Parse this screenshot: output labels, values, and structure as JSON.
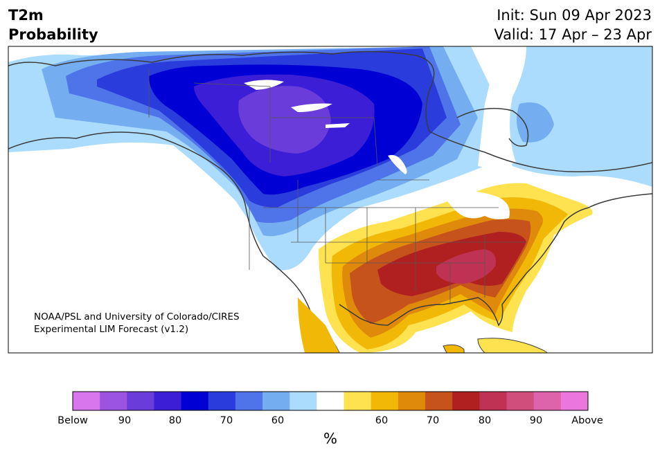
{
  "title": {
    "line1": "T2m",
    "line2": "Probability"
  },
  "info": {
    "init": "Init: Sun 09 Apr 2023",
    "valid": "Valid: 17 Apr – 23 Apr"
  },
  "credit": {
    "line1": "NOAA/PSL and University of Colorado/CIRES",
    "line2": "Experimental LIM Forecast (v1.2)"
  },
  "colorbar": {
    "colors": [
      "#d876ee",
      "#9a54df",
      "#6a3cd9",
      "#3b1ed6",
      "#0000d4",
      "#2a3ddc",
      "#4f74ea",
      "#75adf1",
      "#acdcfd",
      "#ffffff",
      "#ffe24f",
      "#f2b808",
      "#df8a0b",
      "#c6531b",
      "#b02020",
      "#c03253",
      "#cf4e7c",
      "#dd63ab",
      "#eb77dd"
    ],
    "tick_labels": [
      "Below",
      "90",
      "80",
      "70",
      "60",
      "60",
      "70",
      "80",
      "90",
      "Above"
    ],
    "unit": "%"
  },
  "map": {
    "region": "North America",
    "categories": [
      "below-normal probability",
      "near-normal",
      "above-normal probability"
    ]
  }
}
